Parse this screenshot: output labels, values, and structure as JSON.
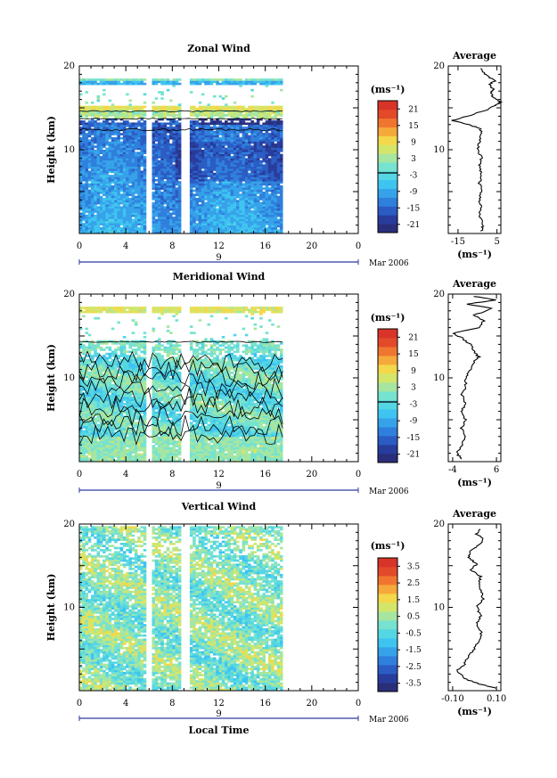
{
  "chart_data": [
    {
      "type": "heatmap",
      "title": "Zonal Wind",
      "ylabel": "Height (km)",
      "ylim": [
        0,
        20
      ],
      "yticks": [
        10,
        20
      ],
      "xlim": [
        0,
        24
      ],
      "xticks": [
        "0",
        "4",
        "8",
        "12",
        "16",
        "20",
        "0"
      ],
      "date_day": "9",
      "date_label": "Mar 2006",
      "unit_label": "(ms⁻¹)",
      "colorbar_ticks": [
        "-21",
        "-15",
        "-9",
        "-3",
        "3",
        "9",
        "15",
        "21"
      ],
      "colorbar_range": [
        -24,
        24
      ],
      "data_x_range": [
        0,
        17.5
      ],
      "gaps": [
        [
          5.8,
          6.2
        ],
        [
          8.8,
          9.3
        ]
      ]
    },
    {
      "type": "line",
      "title": "Average",
      "ylim": [
        0,
        20
      ],
      "yticks": [
        10,
        20
      ],
      "xlim": [
        -20,
        7
      ],
      "xticks": [
        "-15",
        "5"
      ],
      "xlabel": "(ms⁻¹)",
      "series": [
        {
          "points": [
            [
              -3,
              0.3
            ],
            [
              -2,
              1
            ],
            [
              -4,
              2
            ],
            [
              -3,
              3
            ],
            [
              -4,
              4
            ],
            [
              -3,
              5
            ],
            [
              -4,
              6
            ],
            [
              -3,
              7
            ],
            [
              -4,
              8
            ],
            [
              -3,
              9
            ],
            [
              -5,
              10
            ],
            [
              -4,
              11
            ],
            [
              -3,
              12
            ],
            [
              -4,
              12.6
            ],
            [
              -10,
              13
            ],
            [
              -18,
              13.5
            ],
            [
              -10,
              14
            ],
            [
              0,
              14.8
            ],
            [
              4,
              15.3
            ],
            [
              7,
              15.7
            ],
            [
              3,
              16.2
            ],
            [
              2,
              16.8
            ],
            [
              3,
              17.3
            ],
            [
              1,
              17.8
            ],
            [
              4,
              18.2
            ],
            [
              0,
              18.8
            ],
            [
              -2,
              19.3
            ],
            [
              -3,
              19.8
            ]
          ]
        }
      ]
    },
    {
      "type": "heatmap",
      "title": "Meridional Wind",
      "ylabel": "Height (km)",
      "ylim": [
        0,
        20
      ],
      "yticks": [
        10,
        20
      ],
      "xlim": [
        0,
        24
      ],
      "xticks": [
        "0",
        "4",
        "8",
        "12",
        "16",
        "20",
        "0"
      ],
      "date_day": "9",
      "date_label": "Mar 2006",
      "unit_label": "(ms⁻¹)",
      "colorbar_ticks": [
        "-21",
        "-15",
        "-9",
        "-3",
        "3",
        "9",
        "15",
        "21"
      ],
      "colorbar_range": [
        -24,
        24
      ],
      "data_x_range": [
        0,
        17.5
      ],
      "gaps": [
        [
          5.8,
          6.2
        ],
        [
          8.8,
          9.3
        ]
      ]
    },
    {
      "type": "line",
      "title": "Average",
      "ylim": [
        0,
        20
      ],
      "yticks": [
        10,
        20
      ],
      "xlim": [
        -5,
        7
      ],
      "xticks": [
        "-4",
        "6"
      ],
      "xlabel": "(ms⁻¹)",
      "series": [
        {
          "points": [
            [
              -2,
              0.3
            ],
            [
              -3,
              1
            ],
            [
              -2,
              2
            ],
            [
              -1,
              3
            ],
            [
              -2,
              4
            ],
            [
              -1,
              5
            ],
            [
              -2,
              6
            ],
            [
              -1,
              7
            ],
            [
              -2,
              8
            ],
            [
              -1,
              9
            ],
            [
              -1,
              10
            ],
            [
              0,
              11
            ],
            [
              1,
              12
            ],
            [
              2,
              12.5
            ],
            [
              1,
              13
            ],
            [
              0,
              14
            ],
            [
              -2,
              14.8
            ],
            [
              -4,
              15.3
            ],
            [
              2,
              16
            ],
            [
              3,
              16.8
            ],
            [
              1,
              17.5
            ],
            [
              5,
              18.3
            ],
            [
              -1,
              18.8
            ],
            [
              6,
              19.3
            ],
            [
              0,
              19.8
            ]
          ]
        }
      ]
    },
    {
      "type": "heatmap",
      "title": "Vertical Wind",
      "ylabel": "Height (km)",
      "ylim": [
        0,
        20
      ],
      "yticks": [
        10,
        20
      ],
      "xlim": [
        0,
        24
      ],
      "xticks": [
        "0",
        "4",
        "8",
        "12",
        "16",
        "20",
        "0"
      ],
      "xlabel": "Local Time",
      "date_day": "9",
      "date_label": "Mar 2006",
      "unit_label": "(ms⁻¹)",
      "colorbar_ticks": [
        "-3.5",
        "-2.5",
        "-1.5",
        "-0.5",
        "0.5",
        "1.5",
        "2.5",
        "3.5"
      ],
      "colorbar_range": [
        -4,
        4
      ],
      "data_x_range": [
        0,
        17.5
      ],
      "gaps": [
        [
          5.8,
          6.2
        ],
        [
          8.8,
          9.3
        ]
      ]
    },
    {
      "type": "line",
      "title": "Average",
      "ylim": [
        0,
        20
      ],
      "yticks": [
        10,
        20
      ],
      "xlim": [
        -0.12,
        0.12
      ],
      "xticks": [
        "-0.10",
        "0.10"
      ],
      "xlabel": "(ms⁻¹)",
      "series": [
        {
          "points": [
            [
              0.1,
              0.3
            ],
            [
              0.02,
              0.8
            ],
            [
              -0.05,
              1.5
            ],
            [
              -0.08,
              2.5
            ],
            [
              -0.05,
              3
            ],
            [
              -0.03,
              4
            ],
            [
              0,
              5
            ],
            [
              0.02,
              6
            ],
            [
              0.03,
              7
            ],
            [
              0.01,
              8
            ],
            [
              0.03,
              9
            ],
            [
              0.01,
              10
            ],
            [
              0.04,
              11
            ],
            [
              0.03,
              12
            ],
            [
              0.02,
              13
            ],
            [
              0.03,
              13.7
            ],
            [
              -0.02,
              14.5
            ],
            [
              0.01,
              15.2
            ],
            [
              -0.03,
              16
            ],
            [
              -0.02,
              16.7
            ],
            [
              0.02,
              17.5
            ],
            [
              0.04,
              18.2
            ],
            [
              0.01,
              18.8
            ],
            [
              0.03,
              19.5
            ]
          ]
        }
      ]
    }
  ]
}
